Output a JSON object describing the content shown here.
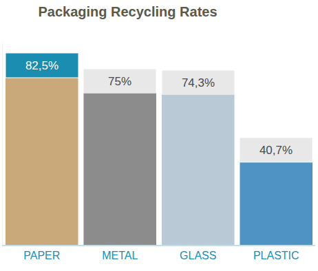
{
  "chart_data": {
    "type": "bar",
    "title": "Packaging Recycling Rates",
    "categories": [
      "PAPER",
      "METAL",
      "GLASS",
      "PLASTIC"
    ],
    "values": [
      82.5,
      75,
      74.3,
      40.7
    ],
    "value_labels": [
      "82,5%",
      "75%",
      "74,3%",
      "40,7%"
    ],
    "colors": [
      "#c9a97a",
      "#8c8c8c",
      "#b9c9d6",
      "#4f93c4"
    ],
    "data_labels": true,
    "tick_labels": "x",
    "ylim": [
      0,
      100
    ],
    "yticks": [],
    "grid": false
  }
}
